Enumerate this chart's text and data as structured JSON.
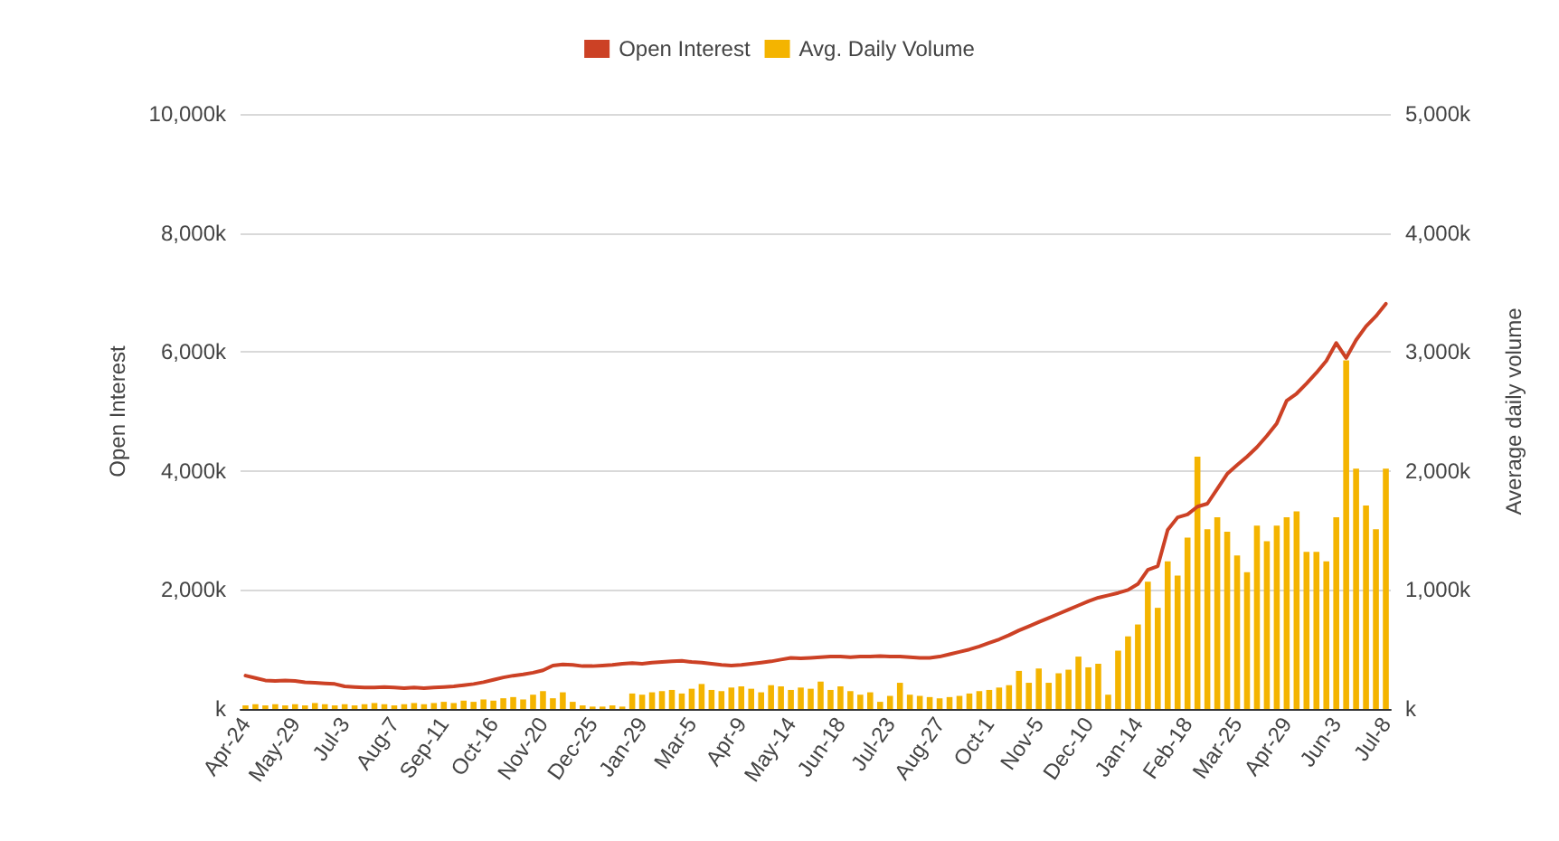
{
  "chart_data": {
    "type": "bar",
    "ylabel": "Open Interest",
    "y2label": "Average daily volume",
    "categories": [
      "Apr-24",
      null,
      null,
      null,
      null,
      "May-29",
      null,
      null,
      null,
      null,
      "Jul-3",
      null,
      null,
      null,
      null,
      "Aug-7",
      null,
      null,
      null,
      null,
      "Sep-11",
      null,
      null,
      null,
      null,
      "Oct-16",
      null,
      null,
      null,
      null,
      "Nov-20",
      null,
      null,
      null,
      null,
      "Dec-25",
      null,
      null,
      null,
      null,
      "Jan-29",
      null,
      null,
      null,
      null,
      "Mar-5",
      null,
      null,
      null,
      null,
      "Apr-9",
      null,
      null,
      null,
      null,
      "May-14",
      null,
      null,
      null,
      null,
      "Jun-18",
      null,
      null,
      null,
      null,
      "Jul-23",
      null,
      null,
      null,
      null,
      "Aug-27",
      null,
      null,
      null,
      null,
      "Oct-1",
      null,
      null,
      null,
      null,
      "Nov-5",
      null,
      null,
      null,
      null,
      "Dec-10",
      null,
      null,
      null,
      null,
      "Jan-14",
      null,
      null,
      null,
      null,
      "Feb-18",
      null,
      null,
      null,
      null,
      "Mar-25",
      null,
      null,
      null,
      null,
      "Apr-29",
      null,
      null,
      null,
      null,
      "Jun-3",
      null,
      null,
      null,
      null,
      "Jul-8"
    ],
    "series": [
      {
        "name": "Open Interest",
        "type": "line",
        "color": "#cc4125",
        "values": [
          560,
          520,
          480,
          470,
          480,
          470,
          450,
          440,
          430,
          420,
          380,
          370,
          360,
          360,
          370,
          360,
          350,
          360,
          350,
          360,
          370,
          380,
          400,
          420,
          450,
          490,
          530,
          560,
          580,
          610,
          650,
          730,
          750,
          740,
          720,
          720,
          730,
          740,
          760,
          770,
          760,
          780,
          790,
          800,
          810,
          790,
          780,
          760,
          740,
          730,
          740,
          760,
          780,
          800,
          830,
          860,
          850,
          860,
          870,
          880,
          880,
          870,
          880,
          880,
          890,
          880,
          880,
          870,
          860,
          860,
          880,
          920,
          960,
          1000,
          1050,
          1110,
          1170,
          1240,
          1320,
          1390,
          1460,
          1530,
          1600,
          1670,
          1740,
          1810,
          1870,
          1910,
          1950,
          2000,
          2100,
          2340,
          2400,
          3010,
          3220,
          3270,
          3400,
          3450,
          3700,
          3950,
          4100,
          4240,
          4400,
          4590,
          4800,
          5180,
          5300,
          5470,
          5650,
          5850,
          6150,
          5900,
          6200,
          6430,
          6600,
          6810
        ]
      },
      {
        "name": "Avg. Daily Volume",
        "axis": "y2",
        "color": "#f4b400",
        "values": [
          30,
          40,
          30,
          40,
          30,
          40,
          30,
          50,
          40,
          30,
          40,
          30,
          40,
          50,
          40,
          30,
          40,
          50,
          40,
          50,
          60,
          50,
          70,
          60,
          80,
          70,
          90,
          100,
          80,
          120,
          150,
          90,
          140,
          60,
          30,
          20,
          20,
          30,
          20,
          130,
          120,
          140,
          150,
          160,
          130,
          170,
          210,
          160,
          150,
          180,
          190,
          170,
          140,
          200,
          190,
          160,
          180,
          170,
          230,
          160,
          190,
          150,
          120,
          140,
          60,
          110,
          220,
          120,
          110,
          100,
          90,
          100,
          110,
          130,
          150,
          160,
          180,
          200,
          320,
          220,
          340,
          220,
          300,
          330,
          440,
          350,
          380,
          120,
          490,
          610,
          710,
          1070,
          850,
          1240,
          1120,
          1440,
          2120,
          1510,
          1610,
          1490,
          1290,
          1150,
          1540,
          1410,
          1540,
          1610,
          1660,
          1320,
          1320,
          1240,
          1610,
          2930,
          2020,
          1710,
          1510,
          2020
        ]
      }
    ],
    "ylim": [
      0,
      10000
    ],
    "yticks": [
      {
        "value": 0,
        "label": "k"
      },
      {
        "value": 2000,
        "label": "2,000k"
      },
      {
        "value": 4000,
        "label": "4,000k"
      },
      {
        "value": 6000,
        "label": "6,000k"
      },
      {
        "value": 8000,
        "label": "8,000k"
      },
      {
        "value": 10000,
        "label": "10,000k"
      }
    ],
    "y2lim": [
      0,
      5000
    ],
    "y2ticks": [
      {
        "value": 0,
        "label": "k"
      },
      {
        "value": 1000,
        "label": "1,000k"
      },
      {
        "value": 2000,
        "label": "2,000k"
      },
      {
        "value": 3000,
        "label": "3,000k"
      },
      {
        "value": 4000,
        "label": "4,000k"
      },
      {
        "value": 5000,
        "label": "5,000k"
      }
    ],
    "grid": "y",
    "legend": "top"
  }
}
